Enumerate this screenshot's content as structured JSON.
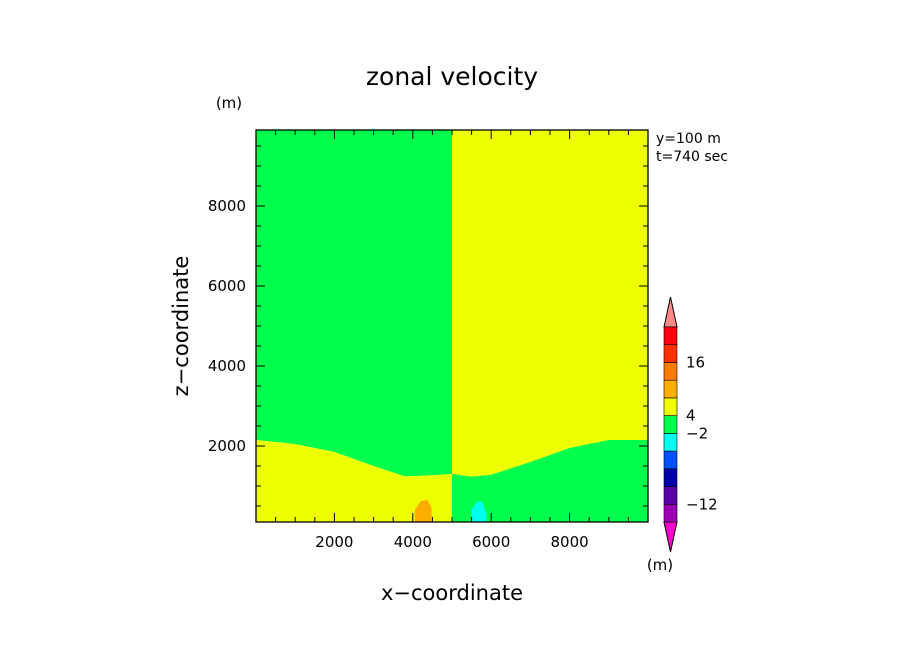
{
  "chart_data": {
    "type": "heatmap",
    "title": "zonal velocity",
    "xlabel": "x−coordinate",
    "ylabel": "z−coordinate",
    "x_unit": "(m)",
    "y_unit": "(m)",
    "info_lines": [
      "y=100  m",
      "t=740  sec"
    ],
    "xlim": [
      0,
      10000
    ],
    "ylim": [
      100,
      9900
    ],
    "x_ticks": [
      2000,
      4000,
      6000,
      8000
    ],
    "y_ticks": [
      2000,
      4000,
      6000,
      8000
    ],
    "x_tick_labels": [
      "2000",
      "4000",
      "6000",
      "8000"
    ],
    "y_tick_labels": [
      "2000",
      "4000",
      "6000",
      "8000"
    ],
    "colors": {
      "green": "#00ff4d",
      "yellow": "#eeff00",
      "orange": "#ffae00",
      "cyan": "#00ffee"
    },
    "regions": [
      {
        "name": "upper-left",
        "color": "green",
        "polygon": [
          [
            0,
            9900
          ],
          [
            5000,
            9900
          ],
          [
            5000,
            1300
          ],
          [
            4500,
            1270
          ],
          [
            3800,
            1240
          ],
          [
            3000,
            1500
          ],
          [
            2000,
            1850
          ],
          [
            1000,
            2050
          ],
          [
            0,
            2150
          ]
        ]
      },
      {
        "name": "upper-right",
        "color": "yellow",
        "polygon": [
          [
            5000,
            9900
          ],
          [
            10000,
            9900
          ],
          [
            10000,
            2150
          ],
          [
            9000,
            2150
          ],
          [
            8000,
            1950
          ],
          [
            7000,
            1600
          ],
          [
            6000,
            1280
          ],
          [
            5500,
            1230
          ],
          [
            5000,
            1300
          ]
        ]
      },
      {
        "name": "lower-left",
        "color": "yellow",
        "polygon": [
          [
            0,
            2150
          ],
          [
            1000,
            2050
          ],
          [
            2000,
            1850
          ],
          [
            3000,
            1500
          ],
          [
            3800,
            1240
          ],
          [
            4500,
            1270
          ],
          [
            5000,
            1300
          ],
          [
            5000,
            100
          ],
          [
            0,
            100
          ]
        ]
      },
      {
        "name": "lower-right",
        "color": "green",
        "polygon": [
          [
            5000,
            1300
          ],
          [
            5500,
            1230
          ],
          [
            6000,
            1280
          ],
          [
            7000,
            1600
          ],
          [
            8000,
            1950
          ],
          [
            9000,
            2150
          ],
          [
            10000,
            2150
          ],
          [
            10000,
            100
          ],
          [
            5000,
            100
          ]
        ]
      },
      {
        "name": "orange-blob",
        "color": "orange",
        "polygon": [
          [
            4050,
            100
          ],
          [
            4050,
            400
          ],
          [
            4200,
            620
          ],
          [
            4370,
            660
          ],
          [
            4480,
            450
          ],
          [
            4480,
            100
          ]
        ]
      },
      {
        "name": "cyan-blob",
        "color": "cyan",
        "polygon": [
          [
            5500,
            100
          ],
          [
            5500,
            420
          ],
          [
            5650,
            620
          ],
          [
            5780,
            600
          ],
          [
            5880,
            300
          ],
          [
            5880,
            100
          ]
        ]
      }
    ],
    "colorbar": {
      "levels": [
        "#ff00cc",
        "#9b00b4",
        "#5a00a8",
        "#0000aa",
        "#0050ff",
        "#00ffee",
        "#00ff4d",
        "#eeff00",
        "#ffae00",
        "#ff7a00",
        "#ff3000",
        "#ff0010",
        "#ff8888"
      ],
      "labels": [
        {
          "text": "16",
          "level_index": 10
        },
        {
          "text": "4",
          "level_index": 7
        },
        {
          "text": "−2",
          "level_index": 6
        },
        {
          "text": "−12",
          "level_index": 2
        }
      ],
      "unit": "(m)"
    }
  }
}
